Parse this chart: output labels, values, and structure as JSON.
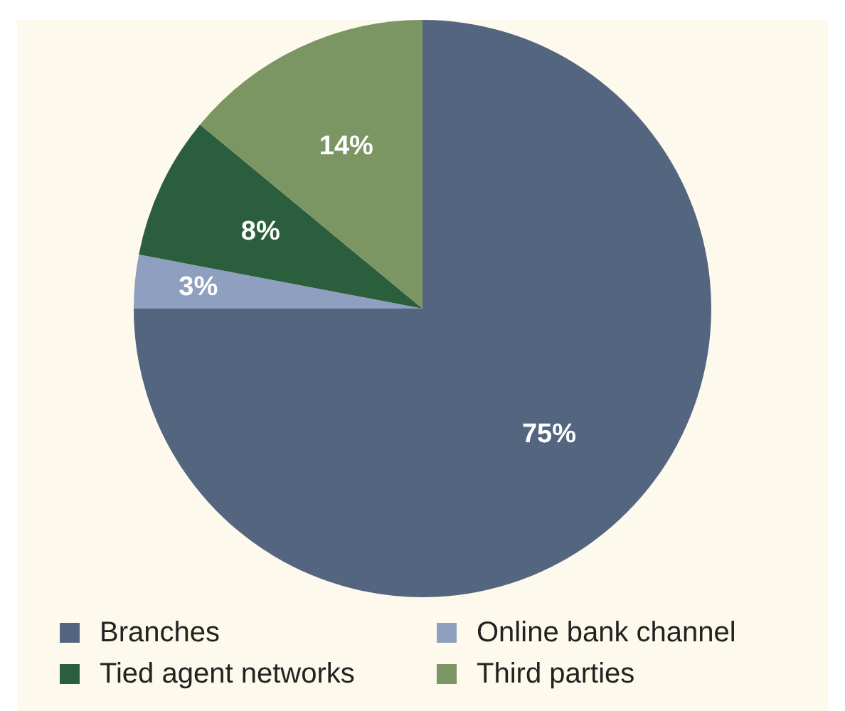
{
  "chart_data": {
    "type": "pie",
    "categories": [
      "Branches",
      "Online bank channel",
      "Tied agent networks",
      "Third parties"
    ],
    "values": [
      75,
      3,
      8,
      14
    ],
    "colors": [
      "#546580",
      "#8e9fbf",
      "#2b5e3c",
      "#7b9563"
    ],
    "value_labels": [
      "75%",
      "3%",
      "8%",
      "14%"
    ],
    "legend": "bottom"
  }
}
